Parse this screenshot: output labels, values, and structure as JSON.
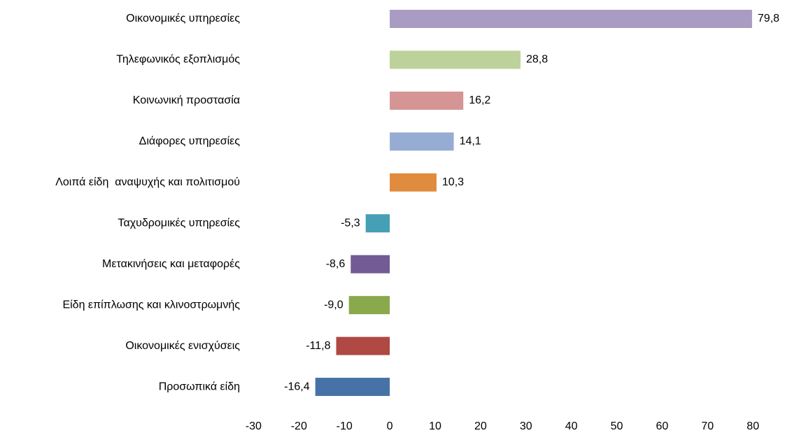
{
  "chart_data": {
    "type": "bar",
    "orientation": "horizontal",
    "categories": [
      "Οικονομικές υπηρεσίες",
      "Τηλεφωνικός εξοπλισμός",
      "Κοινωνική προστασία",
      "Διάφορες υπηρεσίες",
      "Λοιπά είδη  αναψυχής και πολιτισμού",
      "Ταχυδρομικές υπηρεσίες",
      "Μετακινήσεις και μεταφορές",
      "Είδη επίπλωσης και κλινοστρωμνής",
      "Οικονομικές ενισχύσεις",
      "Προσωπικά είδη"
    ],
    "values": [
      79.8,
      28.8,
      16.2,
      14.1,
      10.3,
      -5.3,
      -8.6,
      -9.0,
      -11.8,
      -16.4
    ],
    "value_labels": [
      "79,8",
      "28,8",
      "16,2",
      "14,1",
      "10,3",
      "-5,3",
      "-8,6",
      "-9,0",
      "-11,8",
      "-16,4"
    ],
    "colors": [
      "#a99bc1",
      "#bcd29a",
      "#d49594",
      "#97acd3",
      "#e08b3d",
      "#45a0b5",
      "#735b96",
      "#8aa84c",
      "#b04844",
      "#4672a8"
    ],
    "xlim": [
      -30,
      80
    ],
    "xticks": [
      -30,
      -20,
      -10,
      0,
      10,
      20,
      30,
      40,
      50,
      60,
      70,
      80
    ],
    "grid": false
  }
}
